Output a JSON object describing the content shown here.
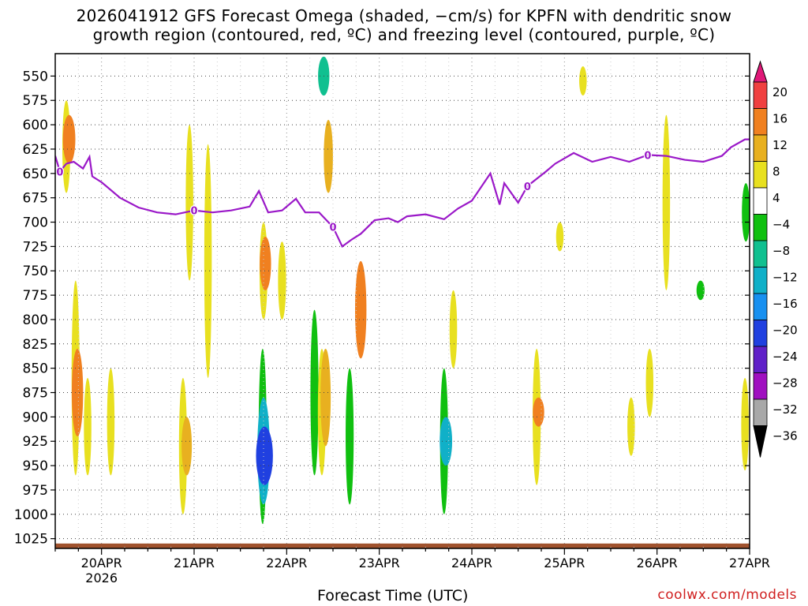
{
  "chart_data": {
    "type": "heatmap",
    "title_line1": "2026041912 GFS Forecast Omega (shaded, −cm/s) for KPFN with dendritic snow",
    "title_line2": "growth region (contoured, red, ºC) and freezing level (contoured, purple, ºC)",
    "xlabel": "Forecast Time (UTC)",
    "credit": "coolwx.com/models",
    "x_ticks": [
      "20APR",
      "21APR",
      "22APR",
      "23APR",
      "24APR",
      "25APR",
      "26APR",
      "27APR"
    ],
    "x_year_label": "2026",
    "xlim_days": [
      19.5,
      27.0
    ],
    "y_ticks": [
      "550",
      "575",
      "600",
      "625",
      "650",
      "675",
      "700",
      "725",
      "750",
      "775",
      "800",
      "825",
      "850",
      "875",
      "900",
      "925",
      "950",
      "975",
      "1000",
      "1025"
    ],
    "ylim_hpa": [
      1035,
      527
    ],
    "grid": "dotted",
    "colorbar": {
      "labels": [
        "20",
        "16",
        "12",
        "8",
        "4",
        "−4",
        "−8",
        "−12",
        "−16",
        "−20",
        "−24",
        "−28",
        "−32",
        "−36"
      ],
      "bins": [
        {
          "color": "#e8e020",
          "range": [
            4,
            8
          ]
        },
        {
          "color": "#e8b020",
          "range": [
            8,
            12
          ]
        },
        {
          "color": "#f08020",
          "range": [
            12,
            16
          ]
        },
        {
          "color": "#f04040",
          "range": [
            16,
            20
          ]
        },
        {
          "color": "#ffffff",
          "range": [
            -4,
            4
          ]
        },
        {
          "color": "#10c010",
          "range": [
            -8,
            -4
          ]
        },
        {
          "color": "#10c090",
          "range": [
            -12,
            -8
          ]
        },
        {
          "color": "#10b0c8",
          "range": [
            -16,
            -12
          ]
        },
        {
          "color": "#1890f0",
          "range": [
            -20,
            -16
          ]
        },
        {
          "color": "#2040e0",
          "range": [
            -24,
            -20
          ]
        },
        {
          "color": "#6020c8",
          "range": [
            -28,
            -24
          ]
        },
        {
          "color": "#a010c0",
          "range": [
            -32,
            -28
          ]
        },
        {
          "color": "#a8a8a8",
          "range": [
            -36,
            -32
          ]
        }
      ],
      "top_arrow_color": "#e01878",
      "bottom_arrow_color": "#000000"
    },
    "omega_cells": [
      {
        "day": 19.62,
        "p_top": 575,
        "p_bot": 670,
        "value": 6
      },
      {
        "day": 19.65,
        "p_top": 590,
        "p_bot": 640,
        "value": 14
      },
      {
        "day": 19.72,
        "p_top": 760,
        "p_bot": 960,
        "value": 6
      },
      {
        "day": 19.74,
        "p_top": 830,
        "p_bot": 920,
        "value": 12
      },
      {
        "day": 19.85,
        "p_top": 860,
        "p_bot": 960,
        "value": 5
      },
      {
        "day": 20.1,
        "p_top": 850,
        "p_bot": 960,
        "value": 5
      },
      {
        "day": 20.88,
        "p_top": 860,
        "p_bot": 1000,
        "value": 6
      },
      {
        "day": 20.92,
        "p_top": 900,
        "p_bot": 960,
        "value": 10
      },
      {
        "day": 20.95,
        "p_top": 600,
        "p_bot": 760,
        "value": 5
      },
      {
        "day": 21.15,
        "p_top": 620,
        "p_bot": 860,
        "value": 5
      },
      {
        "day": 21.75,
        "p_top": 700,
        "p_bot": 800,
        "value": 6
      },
      {
        "day": 21.77,
        "p_top": 715,
        "p_bot": 770,
        "value": 12
      },
      {
        "day": 21.74,
        "p_top": 830,
        "p_bot": 1010,
        "value": -6
      },
      {
        "day": 21.75,
        "p_top": 880,
        "p_bot": 990,
        "value": -14
      },
      {
        "day": 21.76,
        "p_top": 910,
        "p_bot": 970,
        "value": -22
      },
      {
        "day": 21.95,
        "p_top": 720,
        "p_bot": 800,
        "value": 6
      },
      {
        "day": 22.3,
        "p_top": 790,
        "p_bot": 960,
        "value": -6
      },
      {
        "day": 22.38,
        "p_top": 830,
        "p_bot": 960,
        "value": 6
      },
      {
        "day": 22.42,
        "p_top": 830,
        "p_bot": 930,
        "value": 10
      },
      {
        "day": 22.4,
        "p_top": 530,
        "p_bot": 570,
        "value": -12
      },
      {
        "day": 22.45,
        "p_top": 595,
        "p_bot": 670,
        "value": 8
      },
      {
        "day": 22.68,
        "p_top": 850,
        "p_bot": 990,
        "value": -6
      },
      {
        "day": 22.8,
        "p_top": 740,
        "p_bot": 840,
        "value": 12
      },
      {
        "day": 23.7,
        "p_top": 850,
        "p_bot": 1000,
        "value": -6
      },
      {
        "day": 23.72,
        "p_top": 900,
        "p_bot": 950,
        "value": -14
      },
      {
        "day": 23.8,
        "p_top": 770,
        "p_bot": 850,
        "value": 5
      },
      {
        "day": 24.7,
        "p_top": 830,
        "p_bot": 970,
        "value": 6
      },
      {
        "day": 24.72,
        "p_top": 880,
        "p_bot": 910,
        "value": 12
      },
      {
        "day": 24.95,
        "p_top": 700,
        "p_bot": 730,
        "value": 5
      },
      {
        "day": 25.2,
        "p_top": 540,
        "p_bot": 570,
        "value": 5
      },
      {
        "day": 25.72,
        "p_top": 880,
        "p_bot": 940,
        "value": 5
      },
      {
        "day": 25.92,
        "p_top": 830,
        "p_bot": 900,
        "value": 5
      },
      {
        "day": 26.1,
        "p_top": 590,
        "p_bot": 770,
        "value": 5
      },
      {
        "day": 26.47,
        "p_top": 760,
        "p_bot": 780,
        "value": -6
      },
      {
        "day": 26.95,
        "p_top": 860,
        "p_bot": 955,
        "value": 5
      },
      {
        "day": 26.96,
        "p_top": 660,
        "p_bot": 720,
        "value": -6
      }
    ],
    "freezing_level": {
      "label": "0",
      "day": [
        19.5,
        19.55,
        19.62,
        19.7,
        19.8,
        19.87,
        19.9,
        20.0,
        20.2,
        20.4,
        20.6,
        20.8,
        21.0,
        21.2,
        21.4,
        21.6,
        21.7,
        21.8,
        21.95,
        22.1,
        22.2,
        22.35,
        22.5,
        22.6,
        22.7,
        22.8,
        22.95,
        23.1,
        23.2,
        23.3,
        23.5,
        23.7,
        23.85,
        24.0,
        24.2,
        24.3,
        24.35,
        24.5,
        24.6,
        24.8,
        24.9,
        25.1,
        25.3,
        25.5,
        25.7,
        25.9,
        26.1,
        26.3,
        26.5,
        26.7,
        26.8,
        26.95,
        27.0
      ],
      "p_hpa": [
        632,
        648,
        640,
        638,
        645,
        633,
        653,
        659,
        675,
        685,
        690,
        692,
        688,
        690,
        688,
        684,
        668,
        690,
        688,
        676,
        690,
        690,
        705,
        725,
        718,
        712,
        698,
        696,
        700,
        694,
        692,
        697,
        686,
        678,
        650,
        682,
        660,
        680,
        663,
        648,
        640,
        629,
        638,
        633,
        638,
        631,
        632,
        636,
        638,
        632,
        623,
        615,
        615
      ]
    }
  }
}
